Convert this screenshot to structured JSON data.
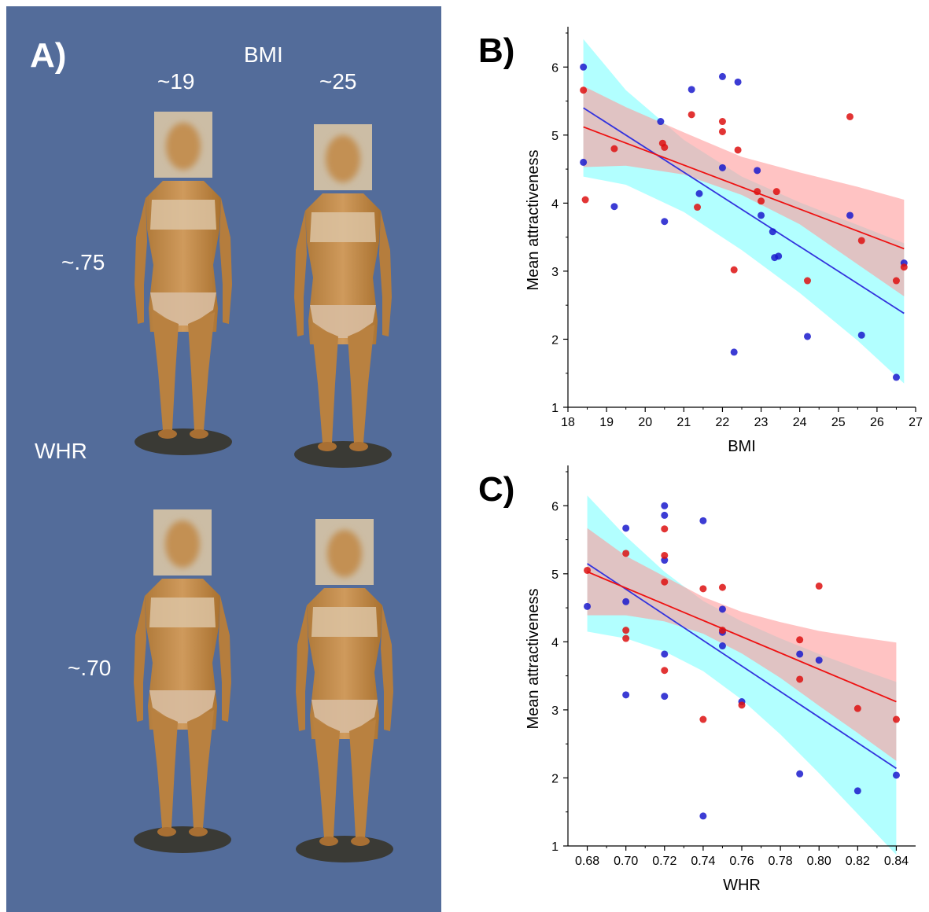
{
  "panel_a": {
    "label": "A)",
    "bmi_header": "BMI",
    "bmi_low": "~19",
    "bmi_high": "~25",
    "whr_header": "WHR",
    "whr_high": "~.75",
    "whr_low": "~.70",
    "background_color": "#536C9A"
  },
  "chart_data": [
    {
      "panel_label": "B)",
      "type": "scatter",
      "title": "",
      "xlabel": "BMI",
      "ylabel": "Mean attractiveness",
      "xlim": [
        18,
        27
      ],
      "ylim": [
        1,
        6.5
      ],
      "xticks": [
        18,
        19,
        20,
        21,
        22,
        23,
        24,
        25,
        26,
        27
      ],
      "xtick_labels": [
        "18",
        "19",
        "20",
        "21",
        "22",
        "23",
        "24",
        "25",
        "26",
        "27"
      ],
      "yticks": [
        1,
        2,
        3,
        4,
        5,
        6
      ],
      "ytick_labels": [
        "1",
        "2",
        "3",
        "4",
        "5",
        "6"
      ],
      "grid": false,
      "series": [
        {
          "color": "#1a1acc",
          "points": [
            [
              18.4,
              6.0
            ],
            [
              18.4,
              4.6
            ],
            [
              19.2,
              3.95
            ],
            [
              20.4,
              5.2
            ],
            [
              20.5,
              3.73
            ],
            [
              21.2,
              5.67
            ],
            [
              21.4,
              4.14
            ],
            [
              22.0,
              5.86
            ],
            [
              22.0,
              4.52
            ],
            [
              22.3,
              1.81
            ],
            [
              22.4,
              5.78
            ],
            [
              22.9,
              4.48
            ],
            [
              23.0,
              3.82
            ],
            [
              23.3,
              3.58
            ],
            [
              23.35,
              3.2
            ],
            [
              23.45,
              3.22
            ],
            [
              24.2,
              2.04
            ],
            [
              25.3,
              3.82
            ],
            [
              25.6,
              2.06
            ],
            [
              26.5,
              1.44
            ],
            [
              26.7,
              3.12
            ]
          ],
          "fit": {
            "x": [
              18.4,
              26.7
            ],
            "y": [
              5.4,
              2.38
            ]
          },
          "band": {
            "x": [
              18.4,
              19.5,
              21,
              22.5,
              24,
              25.5,
              26.7
            ],
            "lower": [
              4.39,
              4.27,
              3.87,
              3.31,
              2.68,
              1.98,
              1.35
            ],
            "upper": [
              6.41,
              5.66,
              4.93,
              4.39,
              4.01,
              3.68,
              3.41
            ]
          },
          "line_color": "#3333dd",
          "band_color": "#00ffff"
        },
        {
          "color": "#dd1111",
          "points": [
            [
              18.4,
              5.66
            ],
            [
              18.45,
              4.05
            ],
            [
              19.2,
              4.8
            ],
            [
              20.45,
              4.88
            ],
            [
              20.5,
              4.82
            ],
            [
              21.2,
              5.3
            ],
            [
              21.35,
              3.94
            ],
            [
              22.0,
              5.2
            ],
            [
              22.0,
              5.05
            ],
            [
              22.3,
              3.02
            ],
            [
              22.4,
              4.78
            ],
            [
              22.9,
              4.17
            ],
            [
              23.0,
              4.03
            ],
            [
              23.4,
              4.17
            ],
            [
              24.2,
              2.86
            ],
            [
              25.3,
              5.27
            ],
            [
              25.6,
              3.45
            ],
            [
              26.5,
              2.86
            ],
            [
              26.7,
              3.06
            ]
          ],
          "fit": {
            "x": [
              18.4,
              26.7
            ],
            "y": [
              5.12,
              3.33
            ]
          },
          "band": {
            "x": [
              18.4,
              19.5,
              21,
              22.5,
              24,
              25.5,
              26.7
            ],
            "lower": [
              4.53,
              4.55,
              4.42,
              4.12,
              3.69,
              3.1,
              2.63
            ],
            "upper": [
              5.72,
              5.41,
              5.04,
              4.68,
              4.45,
              4.24,
              4.05
            ]
          },
          "line_color": "#ee1111",
          "band_color": "#ff9b9b"
        }
      ]
    },
    {
      "panel_label": "C)",
      "type": "scatter",
      "title": "",
      "xlabel": "WHR",
      "ylabel": "Mean attractiveness",
      "xlim": [
        0.67,
        0.85
      ],
      "ylim": [
        1,
        6.5
      ],
      "xticks": [
        0.68,
        0.7,
        0.72,
        0.74,
        0.76,
        0.78,
        0.8,
        0.82,
        0.84
      ],
      "xtick_labels": [
        "0.68",
        "0.70",
        "0.72",
        "0.74",
        "0.76",
        "0.78",
        "0.80",
        "0.82",
        "0.84"
      ],
      "yticks": [
        1,
        2,
        3,
        4,
        5,
        6
      ],
      "ytick_labels": [
        "1",
        "2",
        "3",
        "4",
        "5",
        "6"
      ],
      "grid": false,
      "series": [
        {
          "color": "#1a1acc",
          "points": [
            [
              0.68,
              4.52
            ],
            [
              0.7,
              5.67
            ],
            [
              0.7,
              4.59
            ],
            [
              0.7,
              3.22
            ],
            [
              0.72,
              6.0
            ],
            [
              0.72,
              5.86
            ],
            [
              0.72,
              5.2
            ],
            [
              0.72,
              3.82
            ],
            [
              0.72,
              3.2
            ],
            [
              0.74,
              5.78
            ],
            [
              0.74,
              1.44
            ],
            [
              0.75,
              4.48
            ],
            [
              0.75,
              4.14
            ],
            [
              0.75,
              3.94
            ],
            [
              0.76,
              3.12
            ],
            [
              0.79,
              3.82
            ],
            [
              0.79,
              2.06
            ],
            [
              0.8,
              3.73
            ],
            [
              0.82,
              1.81
            ],
            [
              0.84,
              2.04
            ]
          ],
          "fit": {
            "x": [
              0.68,
              0.84
            ],
            "y": [
              5.15,
              2.14
            ]
          },
          "band": {
            "x": [
              0.68,
              0.7,
              0.72,
              0.74,
              0.76,
              0.78,
              0.8,
              0.82,
              0.84
            ],
            "lower": [
              4.15,
              4.05,
              3.86,
              3.57,
              3.15,
              2.64,
              2.07,
              1.47,
              0.87
            ],
            "upper": [
              6.15,
              5.55,
              5.03,
              4.6,
              4.3,
              4.05,
              3.82,
              3.61,
              3.41
            ]
          },
          "line_color": "#3333dd",
          "band_color": "#00ffff"
        },
        {
          "color": "#dd1111",
          "points": [
            [
              0.68,
              5.05
            ],
            [
              0.7,
              5.3
            ],
            [
              0.7,
              4.17
            ],
            [
              0.7,
              4.05
            ],
            [
              0.72,
              5.66
            ],
            [
              0.72,
              5.27
            ],
            [
              0.72,
              4.88
            ],
            [
              0.72,
              3.58
            ],
            [
              0.74,
              4.78
            ],
            [
              0.74,
              2.86
            ],
            [
              0.75,
              4.8
            ],
            [
              0.75,
              4.17
            ],
            [
              0.76,
              3.07
            ],
            [
              0.79,
              4.03
            ],
            [
              0.79,
              3.45
            ],
            [
              0.8,
              4.82
            ],
            [
              0.82,
              3.02
            ],
            [
              0.84,
              2.86
            ]
          ],
          "fit": {
            "x": [
              0.68,
              0.84
            ],
            "y": [
              5.03,
              3.12
            ]
          },
          "band": {
            "x": [
              0.68,
              0.7,
              0.72,
              0.74,
              0.76,
              0.78,
              0.8,
              0.82,
              0.84
            ],
            "lower": [
              4.39,
              4.39,
              4.3,
              4.12,
              3.83,
              3.47,
              3.06,
              2.66,
              2.25
            ],
            "upper": [
              5.67,
              5.26,
              4.96,
              4.66,
              4.44,
              4.29,
              4.16,
              4.07,
              3.99
            ]
          },
          "line_color": "#ee1111",
          "band_color": "#ff9b9b"
        }
      ]
    }
  ]
}
